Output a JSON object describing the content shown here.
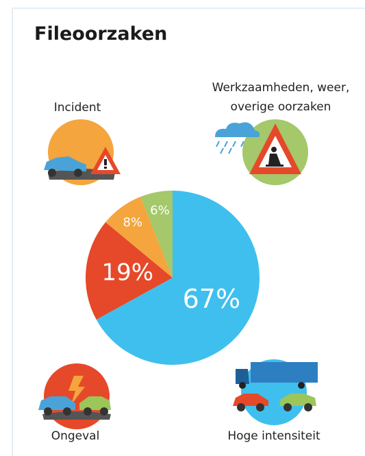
{
  "chart_data": {
    "type": "pie",
    "title": "Fileoorzaken",
    "categories": [
      "Hoge intensiteit",
      "Ongeval",
      "Incident",
      "Werkzaamheden, weer, overige oorzaken"
    ],
    "values": [
      67,
      19,
      8,
      6
    ],
    "value_labels": [
      "67%",
      "19%",
      "8%",
      "6%"
    ],
    "colors": [
      "#3fbfee",
      "#e5492a",
      "#f4a53d",
      "#a4c86a"
    ]
  }
}
